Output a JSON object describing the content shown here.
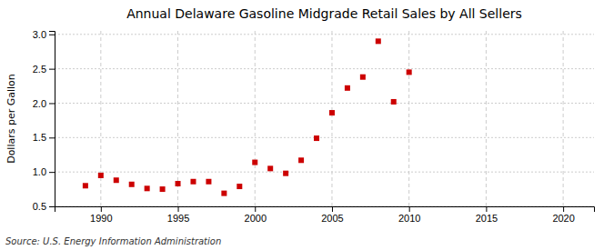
{
  "chart_data": {
    "type": "scatter",
    "title": "Annual Delaware Gasoline Midgrade Retail Sales by All Sellers",
    "ylabel": "Dollars per Gallon",
    "annotations": [
      "Source: U.S. Energy Information Administration"
    ],
    "x": [
      1989,
      1990,
      1991,
      1992,
      1993,
      1994,
      1995,
      1996,
      1997,
      1998,
      1999,
      2000,
      2001,
      2002,
      2003,
      2004,
      2005,
      2006,
      2007,
      2008,
      2009,
      2010
    ],
    "values": [
      0.8,
      0.95,
      0.88,
      0.82,
      0.76,
      0.75,
      0.83,
      0.86,
      0.86,
      0.69,
      0.79,
      1.14,
      1.05,
      0.98,
      1.17,
      1.49,
      1.86,
      2.22,
      2.38,
      2.9,
      2.02,
      2.45
    ],
    "color": "#cc0000",
    "marker": "square",
    "xlim": [
      1987,
      2022
    ],
    "ylim": [
      0.5,
      3.05
    ],
    "xticks": [
      1990,
      1995,
      2000,
      2005,
      2010,
      2015,
      2020
    ],
    "yticks": [
      0.5,
      {
        "value": 1.0,
        "label": "1.0"
      },
      1.5,
      {
        "value": 2.0,
        "label": "2.0"
      },
      2.5,
      {
        "value": 3.0,
        "label": "3.0"
      }
    ],
    "grid": true
  }
}
